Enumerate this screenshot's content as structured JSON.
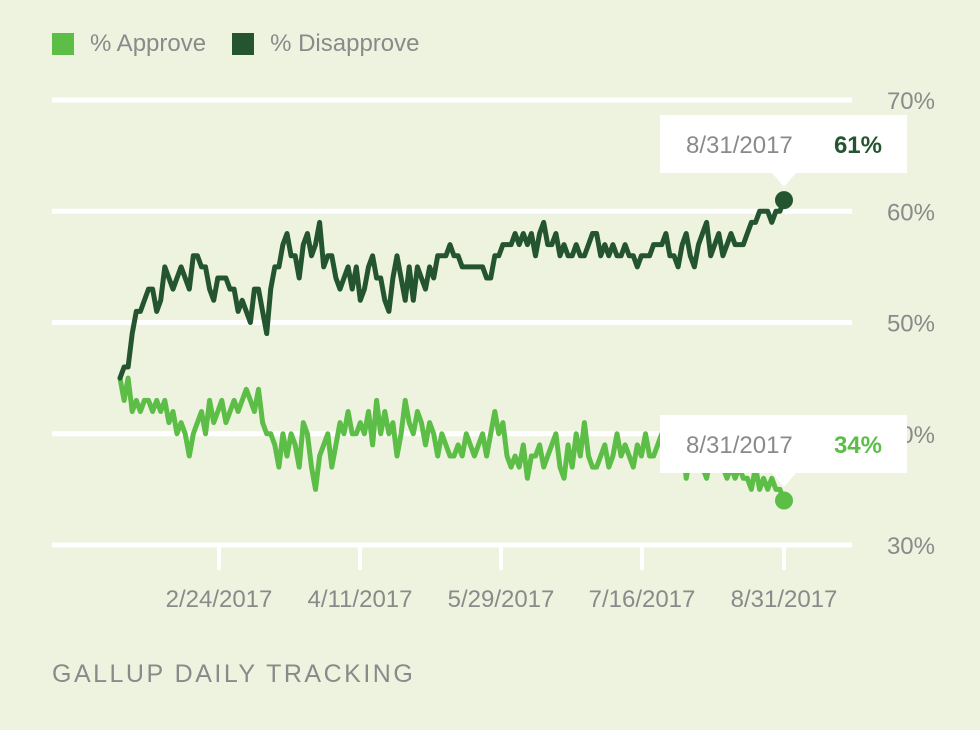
{
  "chart_data": {
    "type": "line",
    "title": "",
    "xlabel": "",
    "ylabel": "",
    "ylim": [
      30,
      70
    ],
    "y_ticks": [
      "70%",
      "60%",
      "50%",
      "40%",
      "30%"
    ],
    "x_ticks": [
      "2/24/2017",
      "4/11/2017",
      "5/29/2017",
      "7/16/2017",
      "8/31/2017"
    ],
    "grid": true,
    "legend_position": "top-left",
    "series": [
      {
        "name": "% Approve",
        "color": "#5cbd47",
        "values": [
          45,
          43,
          45,
          42,
          43,
          42,
          43,
          43,
          42,
          43,
          42,
          43,
          41,
          42,
          40,
          41,
          40,
          38,
          40,
          41,
          42,
          40,
          43,
          41,
          42,
          43,
          41,
          42,
          43,
          42,
          43,
          44,
          43,
          42,
          44,
          41,
          40,
          40,
          39,
          37,
          40,
          38,
          40,
          39,
          37,
          41,
          40,
          37,
          35,
          38,
          39,
          40,
          37,
          39,
          41,
          40,
          42,
          40,
          40,
          41,
          40,
          42,
          39,
          43,
          40,
          42,
          40,
          41,
          38,
          40,
          43,
          41,
          40,
          42,
          41,
          39,
          41,
          40,
          38,
          40,
          39,
          38,
          38,
          39,
          38,
          40,
          39,
          38,
          39,
          40,
          38,
          40,
          42,
          40,
          41,
          38,
          37,
          38,
          37,
          39,
          36,
          38,
          38,
          39,
          37,
          38,
          39,
          40,
          37,
          36,
          39,
          37,
          40,
          38,
          41,
          38,
          37,
          37,
          38,
          39,
          37,
          38,
          40,
          38,
          39,
          38,
          37,
          39,
          38,
          40,
          38,
          38,
          39,
          40,
          37,
          37,
          38,
          39,
          40,
          36,
          38,
          37,
          38,
          37,
          36,
          38,
          38,
          37,
          37,
          36,
          37,
          36,
          37,
          36,
          36,
          35,
          37,
          35,
          36,
          35,
          36,
          35,
          35,
          34
        ]
      },
      {
        "name": "% Disapprove",
        "color": "#245530",
        "values": [
          45,
          46,
          46,
          49,
          51,
          51,
          52,
          53,
          53,
          51,
          52,
          55,
          54,
          53,
          54,
          55,
          54,
          53,
          56,
          56,
          55,
          55,
          53,
          52,
          54,
          54,
          54,
          53,
          53,
          51,
          52,
          51,
          50,
          53,
          53,
          51,
          49,
          53,
          55,
          55,
          57,
          58,
          56,
          56,
          54,
          57,
          58,
          56,
          57,
          59,
          55,
          56,
          56,
          54,
          53,
          54,
          55,
          53,
          55,
          52,
          53,
          55,
          56,
          54,
          54,
          52,
          51,
          54,
          56,
          54,
          52,
          55,
          52,
          55,
          54,
          53,
          55,
          54,
          56,
          56,
          56,
          57,
          56,
          56,
          55,
          55,
          55,
          55,
          55,
          55,
          54,
          54,
          56,
          56,
          57,
          57,
          57,
          58,
          57,
          58,
          57,
          58,
          56,
          58,
          59,
          57,
          57,
          58,
          56,
          57,
          56,
          56,
          57,
          56,
          56,
          57,
          58,
          58,
          56,
          57,
          56,
          57,
          56,
          56,
          57,
          56,
          56,
          55,
          56,
          56,
          56,
          57,
          57,
          57,
          58,
          56,
          56,
          55,
          57,
          58,
          56,
          55,
          57,
          58,
          59,
          56,
          57,
          58,
          56,
          57,
          58,
          57,
          57,
          57,
          58,
          59,
          59,
          60,
          60,
          60,
          59,
          60,
          60,
          61
        ]
      }
    ],
    "callouts": [
      {
        "date": "8/31/2017",
        "value": "61%"
      },
      {
        "date": "8/31/2017",
        "value": "34%"
      }
    ]
  },
  "footer": "GALLUP DAILY TRACKING"
}
